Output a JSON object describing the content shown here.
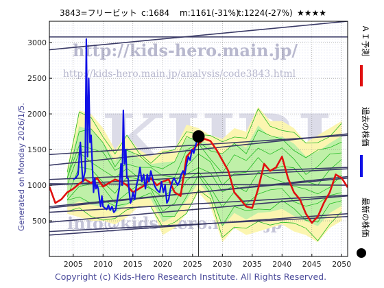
{
  "header": {
    "code_name": "3843=フリービット",
    "current": "c:1684",
    "mid": "m:1161(-31%)",
    "target": "t:1224(-27%)",
    "rating": "★★★★"
  },
  "watermark": {
    "site": "http://kids-hero.main.jp/",
    "page": "http://kids-hero.main.jp/analysis/code3843.html",
    "logo": "KHRI",
    "mail": "info@kids-hero.main.jp"
  },
  "footer": {
    "generated": "Generated on Monday 2026/1/5.",
    "copyright": "Copyright (c) Kids-Hero Research Institute. All Rights Reserved."
  },
  "legend": {
    "ai_label": "ＡＩ予測",
    "past_label": "過去の株価",
    "latest_label": "最新の株価"
  },
  "colors": {
    "past": "#1010e6",
    "ai": "#e01010",
    "bands": "#22bb22",
    "band_fill_green": "#bff0a8",
    "band_fill_yellow": "#fbf5b0",
    "trend": "#3a3a66",
    "latest_dot": "#000000"
  },
  "chart_data": {
    "type": "line",
    "xlim": [
      2001,
      2051
    ],
    "ylim": [
      0,
      3300
    ],
    "xticks": [
      2005,
      2010,
      2015,
      2020,
      2025,
      2030,
      2035,
      2040,
      2045,
      2050
    ],
    "yticks": [
      500,
      1000,
      1500,
      2000,
      2500,
      3000
    ],
    "grid": true,
    "latest_point": {
      "x": 2026.0,
      "y": 1684
    },
    "series": [
      {
        "role": "past",
        "x": [
          2005.0,
          2005.4,
          2005.8,
          2006.2,
          2006.6,
          2007.0,
          2007.2,
          2007.4,
          2007.6,
          2007.8,
          2008.0,
          2008.2,
          2008.4,
          2008.6,
          2008.8,
          2009.0,
          2009.2,
          2009.4,
          2009.6,
          2009.8,
          2010.0,
          2010.3,
          2010.6,
          2010.9,
          2011.2,
          2011.5,
          2011.8,
          2012.1,
          2012.4,
          2012.7,
          2013.0,
          2013.2,
          2013.4,
          2013.6,
          2013.8,
          2014.0,
          2014.2,
          2014.4,
          2014.6,
          2014.8,
          2015.0,
          2015.3,
          2015.6,
          2015.9,
          2016.2,
          2016.5,
          2016.8,
          2017.1,
          2017.4,
          2017.7,
          2018.0,
          2018.3,
          2018.6,
          2018.9,
          2019.2,
          2019.5,
          2019.8,
          2020.1,
          2020.4,
          2020.7,
          2021.0,
          2021.3,
          2021.6,
          2021.9,
          2022.2,
          2022.5,
          2022.8,
          2023.1,
          2023.4,
          2023.7,
          2024.0,
          2024.3,
          2024.6,
          2024.9,
          2025.2,
          2025.5,
          2025.8,
          2026.0
        ],
        "y": [
          1080,
          1100,
          1150,
          1600,
          1050,
          1200,
          3050,
          1400,
          2500,
          1600,
          1700,
          1300,
          900,
          1100,
          950,
          1000,
          950,
          800,
          700,
          850,
          700,
          680,
          660,
          720,
          650,
          700,
          620,
          650,
          800,
          950,
          1300,
          1000,
          2050,
          1300,
          1500,
          1100,
          1100,
          900,
          750,
          800,
          900,
          800,
          1000,
          1100,
          1250,
          1050,
          1150,
          950,
          1150,
          1050,
          1200,
          1100,
          1000,
          950,
          920,
          900,
          1050,
          900,
          1000,
          750,
          800,
          950,
          1050,
          1100,
          1050,
          1000,
          1050,
          1150,
          1200,
          1150,
          1300,
          1400,
          1350,
          1500,
          1450,
          1550,
          1650,
          1684
        ]
      },
      {
        "role": "ai",
        "x": [
          2001.0,
          2002.0,
          2003.0,
          2004.0,
          2005.0,
          2006.0,
          2007.0,
          2008.0,
          2009.0,
          2010.0,
          2011.0,
          2012.0,
          2013.0,
          2014.0,
          2015.0,
          2016.0,
          2017.0,
          2018.0,
          2019.0,
          2020.0,
          2021.0,
          2022.0,
          2023.0,
          2024.0,
          2025.0,
          2026.0,
          2027.0,
          2028.0,
          2029.0,
          2030.0,
          2031.0,
          2032.0,
          2033.0,
          2034.0,
          2035.0,
          2036.0,
          2037.0,
          2038.0,
          2039.0,
          2040.0,
          2041.0,
          2042.0,
          2043.0,
          2044.0,
          2045.0,
          2046.0,
          2047.0,
          2048.0,
          2049.0,
          2050.0,
          2051.0
        ],
        "y": [
          980,
          750,
          800,
          900,
          950,
          1020,
          1080,
          1030,
          1100,
          980,
          1030,
          1080,
          1050,
          1000,
          900,
          950,
          1000,
          1100,
          1000,
          1050,
          1080,
          900,
          850,
          1400,
          1500,
          1580,
          1650,
          1620,
          1500,
          1350,
          1200,
          900,
          800,
          700,
          680,
          950,
          1300,
          1200,
          1250,
          1400,
          1100,
          900,
          800,
          600,
          470,
          560,
          750,
          900,
          1150,
          1100,
          970
        ]
      },
      {
        "role": "band",
        "x": [
          2004,
          2006,
          2008,
          2010,
          2012,
          2014,
          2016,
          2018,
          2020,
          2022,
          2024,
          2026,
          2028,
          2030,
          2032,
          2034,
          2036,
          2038,
          2040,
          2042,
          2044,
          2046,
          2048,
          2050
        ],
        "upper": [
          1250,
          2050,
          2000,
          1800,
          1500,
          1700,
          1500,
          1400,
          1500,
          1500,
          1850,
          1800,
          1700,
          1650,
          1800,
          1750,
          2100,
          1900,
          1900,
          1800,
          1600,
          1700,
          1800,
          1900
        ],
        "lower": [
          600,
          550,
          500,
          500,
          450,
          550,
          700,
          700,
          300,
          400,
          600,
          900,
          700,
          200,
          400,
          300,
          350,
          400,
          450,
          350,
          300,
          200,
          400,
          500
        ]
      }
    ]
  }
}
